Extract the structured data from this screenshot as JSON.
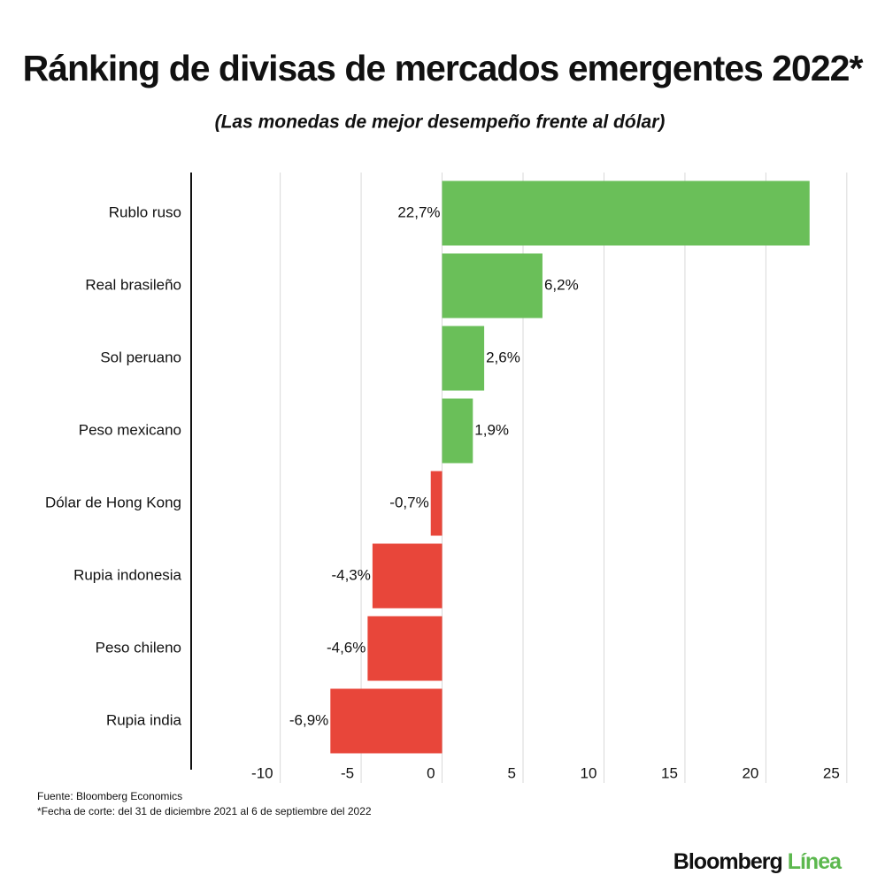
{
  "chart_data": {
    "type": "bar",
    "orientation": "horizontal",
    "title": "Ránking de divisas de mercados emergentes 2022*",
    "subtitle": "(Las monedas de mejor desempeño frente al dólar)",
    "categories": [
      "Rublo ruso",
      "Real brasileño",
      "Sol peruano",
      "Peso mexicano",
      "Dólar de Hong Kong",
      "Rupia indonesia",
      "Peso chileno",
      "Rupia india"
    ],
    "values": [
      22.7,
      6.2,
      2.6,
      1.9,
      -0.7,
      -4.3,
      -4.6,
      -6.9
    ],
    "value_labels": [
      "22,7%",
      "6,2%",
      "2,6%",
      "1,9%",
      "-0,7%",
      "-4,3%",
      "-4,6%",
      "-6,9%"
    ],
    "colors": [
      "#6abf59",
      "#6abf59",
      "#6abf59",
      "#6abf59",
      "#e8463a",
      "#e8463a",
      "#e8463a",
      "#e8463a"
    ],
    "xlim": [
      -15.5,
      25.5
    ],
    "xticks": [
      -10,
      -5,
      0,
      5,
      10,
      15,
      20,
      25
    ],
    "grid": true,
    "source": "Fuente: Bloomberg Economics",
    "note": "*Fecha de corte: del 31 de diciembre 2021 al 6 de septiembre del 2022",
    "brand": "Bloomberg",
    "brand_accent": "Línea",
    "brand_accent_color": "#5cb84e"
  }
}
